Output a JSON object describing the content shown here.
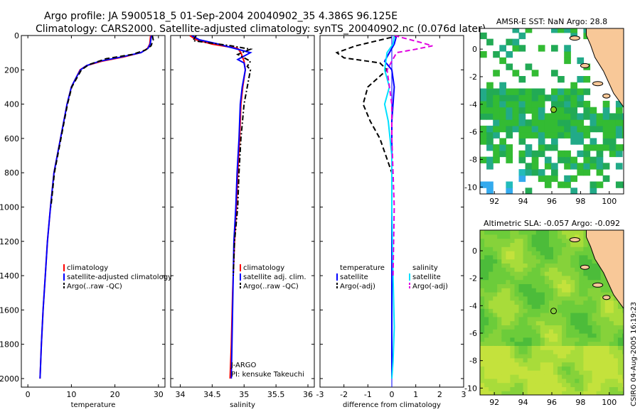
{
  "title": {
    "line1": "Argo profile: JA 5900518_5 01-Sep-2004 20040902_35 4.386S 96.125E",
    "line2": "Climatology: CARS2000. Satellite-adjusted climatology: synTS_20040902.nc (0.076d later)"
  },
  "stamp": "CSIRO 04-Aug-2005 16:19:23",
  "colors": {
    "climatology": "#ff0000",
    "satellite_adjusted": "#0000ff",
    "argo": "#000000",
    "salinity_sat": "#00e0ff",
    "salinity_argo": "#e000e0",
    "land": "#f8c898",
    "marker_sst": "#88cc22"
  },
  "chart_data": [
    {
      "type": "line",
      "name_id": "temperature-profile",
      "xlabel": "temperature",
      "ylabel": "",
      "xlim": [
        -1.5,
        31.5
      ],
      "ylim": [
        0,
        2050
      ],
      "y_inverted": true,
      "xticks": [
        0,
        10,
        20,
        30
      ],
      "yticks": [
        0,
        200,
        400,
        600,
        800,
        1000,
        1200,
        1400,
        1600,
        1800,
        2000
      ],
      "legend": [
        "climatology",
        "satellite-adjusted climatology",
        "Argo(..raw -QC)"
      ],
      "legend_position": "lower-right",
      "series": [
        {
          "name": "climatology",
          "style": "solid",
          "color": "#ff0000",
          "x": [
            28.2,
            28.0,
            27.5,
            26.0,
            22.0,
            17.0,
            13.5,
            12.0,
            11.0,
            10.0,
            9.0,
            7.5,
            6.0,
            5.2,
            4.5,
            4.0,
            3.5,
            3.1,
            2.8
          ],
          "y": [
            0,
            50,
            75,
            100,
            125,
            150,
            175,
            200,
            250,
            300,
            400,
            600,
            800,
            1000,
            1200,
            1400,
            1600,
            1800,
            2000
          ]
        },
        {
          "name": "satellite-adjusted climatology",
          "style": "solid",
          "color": "#0000ff",
          "x": [
            28.4,
            28.1,
            27.6,
            26.0,
            21.5,
            16.5,
            13.5,
            12.1,
            11.0,
            10.0,
            9.0,
            7.5,
            6.0,
            5.2,
            4.5,
            4.0,
            3.5,
            3.1,
            2.8
          ],
          "y": [
            0,
            50,
            75,
            100,
            125,
            150,
            175,
            200,
            250,
            300,
            400,
            600,
            800,
            1000,
            1200,
            1400,
            1600,
            1800,
            2000
          ]
        },
        {
          "name": "Argo(..raw -QC)",
          "style": "dashed",
          "color": "#000000",
          "x": [
            28.6,
            28.8,
            28.3,
            27.0,
            24.0,
            18.0,
            14.0,
            12.3,
            11.2,
            10.1,
            9.1,
            7.6,
            6.1,
            5.3
          ],
          "y": [
            0,
            25,
            60,
            85,
            110,
            135,
            170,
            200,
            250,
            300,
            400,
            600,
            800,
            1000
          ]
        }
      ]
    },
    {
      "type": "line",
      "name_id": "salinity-profile",
      "xlabel": "salinity",
      "xlim": [
        33.85,
        36.1
      ],
      "ylim": [
        0,
        2050
      ],
      "y_inverted": true,
      "xticks": [
        34,
        34.5,
        35,
        35.5,
        36
      ],
      "legend": [
        "climatology",
        "satellite adj. clim.",
        "Argo(..raw -QC)"
      ],
      "legend_position": "lower-right",
      "annotations": [
        "J-ARGO",
        "PI: kensuke Takeuchi"
      ],
      "series": [
        {
          "name": "climatology",
          "style": "solid",
          "color": "#ff0000",
          "x": [
            34.15,
            34.25,
            34.5,
            34.9,
            34.95,
            35.0,
            35.02,
            34.98,
            34.95,
            34.93,
            34.9,
            34.88,
            34.85,
            34.82,
            34.8,
            34.78
          ],
          "y": [
            0,
            25,
            50,
            75,
            100,
            150,
            200,
            300,
            400,
            600,
            800,
            1000,
            1200,
            1500,
            1800,
            2000
          ]
        },
        {
          "name": "satellite adj. clim.",
          "style": "solid",
          "color": "#0000ff",
          "x": [
            34.18,
            34.3,
            34.6,
            34.85,
            35.1,
            34.9,
            35.0,
            35.02,
            34.97,
            34.94,
            34.92,
            34.89,
            34.87,
            34.84,
            34.82,
            34.8
          ],
          "y": [
            0,
            25,
            50,
            75,
            100,
            140,
            160,
            200,
            300,
            400,
            600,
            800,
            1000,
            1200,
            1600,
            2000
          ]
        },
        {
          "name": "Argo(..raw -QC)",
          "style": "dashdot",
          "color": "#000000",
          "x": [
            34.25,
            34.2,
            34.8,
            35.1,
            34.9,
            35.1,
            35.05,
            35.1,
            35.05,
            35.0,
            34.95,
            34.92,
            34.9,
            34.85,
            34.83
          ],
          "y": [
            0,
            30,
            60,
            80,
            110,
            150,
            180,
            200,
            300,
            400,
            600,
            800,
            1000,
            1200,
            1400
          ]
        }
      ]
    },
    {
      "type": "line",
      "name_id": "difference-profile",
      "xlabel": "difference from climatology",
      "xlim": [
        -3,
        3
      ],
      "ylim": [
        0,
        2050
      ],
      "y_inverted": true,
      "xticks": [
        -3,
        -2,
        -1,
        0,
        1,
        2,
        3
      ],
      "legend_left": [
        "temperature",
        "satellite",
        "Argo(-adj)"
      ],
      "legend_right": [
        "salinity",
        "satellite",
        "Argo(-adj)"
      ],
      "legend_position": "lower-center",
      "series": [
        {
          "name": "temperature satellite",
          "style": "solid",
          "color": "#0000ff",
          "x": [
            0.2,
            0.1,
            -0.1,
            -0.3,
            0.0,
            0.1,
            0.0,
            0.0,
            0.0,
            0.0
          ],
          "y": [
            0,
            50,
            100,
            150,
            200,
            300,
            500,
            800,
            1200,
            2000
          ]
        },
        {
          "name": "temperature Argo(-adj)",
          "style": "dashed",
          "color": "#000000",
          "x": [
            0.3,
            -1.5,
            -2.3,
            -2.0,
            -0.5,
            -0.2,
            -1.0,
            -1.2,
            -0.9,
            -0.5,
            0.0,
            0.0
          ],
          "y": [
            0,
            60,
            100,
            130,
            160,
            200,
            300,
            400,
            500,
            600,
            800,
            1000
          ]
        },
        {
          "name": "salinity satellite",
          "style": "solid",
          "color": "#00e0ff",
          "x": [
            0.1,
            0.05,
            -0.2,
            -0.3,
            -0.1,
            -0.3,
            -0.15,
            0.0,
            0.0,
            0.05,
            0.1,
            0.05,
            0.0
          ],
          "y": [
            0,
            50,
            100,
            200,
            300,
            400,
            500,
            700,
            1000,
            1400,
            1700,
            1900,
            2000
          ]
        },
        {
          "name": "salinity Argo(-adj)",
          "style": "dashed",
          "color": "#e000e0",
          "x": [
            0.1,
            1.2,
            1.7,
            1.0,
            0.2,
            -0.2,
            -0.1,
            0.0,
            0.0,
            0.1,
            0.05
          ],
          "y": [
            0,
            40,
            60,
            80,
            100,
            200,
            300,
            400,
            600,
            1000,
            1400
          ]
        }
      ]
    },
    {
      "type": "heatmap",
      "name_id": "sst-map",
      "title": "AMSR-E SST: NaN Argo: 28.8",
      "xlim": [
        91,
        101
      ],
      "ylim": [
        -10.5,
        1.5
      ],
      "xticks": [
        92,
        94,
        96,
        98,
        100
      ],
      "yticks": [
        0,
        -2,
        -4,
        -6,
        -8,
        -10
      ],
      "argo_position": [
        96.125,
        -4.386
      ]
    },
    {
      "type": "heatmap",
      "name_id": "sla-map",
      "title": "Altimetric SLA: -0.057 Argo: -0.092",
      "xlim": [
        91,
        101
      ],
      "ylim": [
        -10.5,
        1.5
      ],
      "xticks": [
        92,
        94,
        96,
        98,
        100
      ],
      "yticks": [
        0,
        -2,
        -4,
        -6,
        -8,
        -10
      ],
      "argo_position": [
        96.125,
        -4.386
      ]
    }
  ]
}
